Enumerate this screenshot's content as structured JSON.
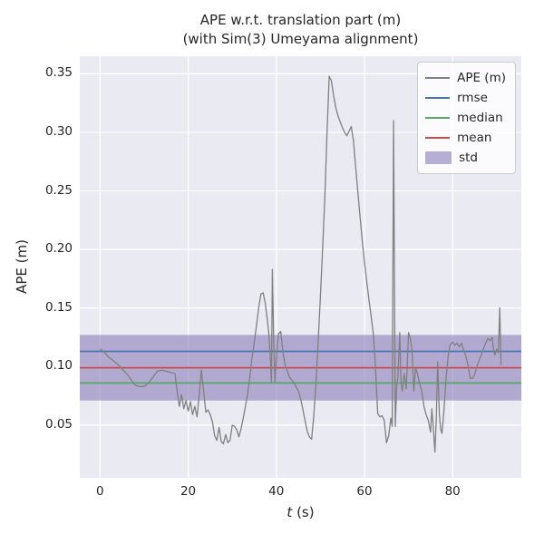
{
  "figure": {
    "title_line1": "APE w.r.t. translation part (m)",
    "title_line2": "(with Sim(3) Umeyama alignment)",
    "ylabel": "APE (m)",
    "xlabel_var": "t",
    "xlabel_unit": " (s)"
  },
  "chart_data": {
    "type": "line",
    "title": "APE w.r.t. translation part (m)\n(with Sim(3) Umeyama alignment)",
    "xlabel": "t (s)",
    "ylabel": "APE (m)",
    "xlim": [
      -4.6,
      95.6
    ],
    "ylim": [
      0.005,
      0.365
    ],
    "xticks": [
      0,
      20,
      40,
      60,
      80
    ],
    "yticks": [
      0.05,
      0.1,
      0.15,
      0.2,
      0.25,
      0.3,
      0.35
    ],
    "grid": true,
    "background_color": "#eaeaf2",
    "grid_color": "#ffffff",
    "legend_position": "upper right",
    "stats": {
      "rmse": {
        "value": 0.113,
        "color": "#4c72b0"
      },
      "median": {
        "value": 0.086,
        "color": "#55a868"
      },
      "mean": {
        "value": 0.099,
        "color": "#c44e52"
      },
      "std": {
        "band": [
          0.071,
          0.127
        ],
        "color": "#8172b2",
        "alpha": 0.55
      }
    },
    "legend": [
      {
        "label": "APE (m)",
        "type": "line",
        "color": "#808080"
      },
      {
        "label": "rmse",
        "type": "line",
        "color": "#4c72b0"
      },
      {
        "label": "median",
        "type": "line",
        "color": "#55a868"
      },
      {
        "label": "mean",
        "type": "line",
        "color": "#c44e52"
      },
      {
        "label": "std",
        "type": "patch",
        "color": "#8172b2"
      }
    ],
    "series": [
      {
        "name": "APE (m)",
        "color": "#808080",
        "points": [
          [
            0,
            0.115
          ],
          [
            1,
            0.112
          ],
          [
            2,
            0.108
          ],
          [
            3,
            0.105
          ],
          [
            4,
            0.102
          ],
          [
            5,
            0.098
          ],
          [
            6,
            0.094
          ],
          [
            7,
            0.089
          ],
          [
            8,
            0.084
          ],
          [
            9,
            0.083
          ],
          [
            10,
            0.083
          ],
          [
            11,
            0.086
          ],
          [
            12,
            0.091
          ],
          [
            13,
            0.096
          ],
          [
            14,
            0.097
          ],
          [
            15,
            0.096
          ],
          [
            16,
            0.095
          ],
          [
            17,
            0.094
          ],
          [
            17.5,
            0.078
          ],
          [
            18,
            0.066
          ],
          [
            18.5,
            0.076
          ],
          [
            19,
            0.064
          ],
          [
            19.5,
            0.071
          ],
          [
            20,
            0.062
          ],
          [
            20.5,
            0.07
          ],
          [
            21,
            0.059
          ],
          [
            21.5,
            0.066
          ],
          [
            22,
            0.057
          ],
          [
            22.5,
            0.076
          ],
          [
            23,
            0.097
          ],
          [
            23.5,
            0.079
          ],
          [
            24,
            0.061
          ],
          [
            24.5,
            0.063
          ],
          [
            25,
            0.059
          ],
          [
            25.5,
            0.053
          ],
          [
            26,
            0.041
          ],
          [
            26.5,
            0.037
          ],
          [
            27,
            0.048
          ],
          [
            27.5,
            0.036
          ],
          [
            28,
            0.034
          ],
          [
            28.5,
            0.042
          ],
          [
            29,
            0.035
          ],
          [
            29.5,
            0.037
          ],
          [
            30,
            0.05
          ],
          [
            30.5,
            0.049
          ],
          [
            31,
            0.046
          ],
          [
            31.5,
            0.04
          ],
          [
            32,
            0.047
          ],
          [
            32.5,
            0.056
          ],
          [
            33,
            0.066
          ],
          [
            33.5,
            0.077
          ],
          [
            34,
            0.091
          ],
          [
            34.5,
            0.108
          ],
          [
            35,
            0.121
          ],
          [
            35.5,
            0.135
          ],
          [
            36,
            0.15
          ],
          [
            36.5,
            0.162
          ],
          [
            37,
            0.163
          ],
          [
            37.5,
            0.154
          ],
          [
            38,
            0.139
          ],
          [
            38.3,
            0.128
          ],
          [
            38.6,
            0.11
          ],
          [
            38.9,
            0.086
          ],
          [
            39.1,
            0.183
          ],
          [
            39.4,
            0.12
          ],
          [
            39.7,
            0.087
          ],
          [
            40,
            0.108
          ],
          [
            40.5,
            0.128
          ],
          [
            41,
            0.13
          ],
          [
            41.5,
            0.112
          ],
          [
            42,
            0.101
          ],
          [
            42.5,
            0.096
          ],
          [
            43,
            0.091
          ],
          [
            44,
            0.086
          ],
          [
            45,
            0.079
          ],
          [
            45.5,
            0.073
          ],
          [
            46,
            0.064
          ],
          [
            46.5,
            0.054
          ],
          [
            47,
            0.045
          ],
          [
            47.5,
            0.04
          ],
          [
            48,
            0.038
          ],
          [
            48.5,
            0.058
          ],
          [
            49,
            0.086
          ],
          [
            49.5,
            0.121
          ],
          [
            50,
            0.16
          ],
          [
            50.5,
            0.2
          ],
          [
            51,
            0.243
          ],
          [
            51.5,
            0.3
          ],
          [
            52,
            0.348
          ],
          [
            52.5,
            0.344
          ],
          [
            53,
            0.331
          ],
          [
            53.5,
            0.321
          ],
          [
            54,
            0.314
          ],
          [
            54.5,
            0.309
          ],
          [
            55,
            0.304
          ],
          [
            55.5,
            0.3
          ],
          [
            56,
            0.297
          ],
          [
            56.5,
            0.301
          ],
          [
            57,
            0.305
          ],
          [
            57.5,
            0.293
          ],
          [
            58,
            0.27
          ],
          [
            58.5,
            0.249
          ],
          [
            59,
            0.228
          ],
          [
            59.5,
            0.208
          ],
          [
            60,
            0.189
          ],
          [
            60.5,
            0.173
          ],
          [
            61,
            0.158
          ],
          [
            61.5,
            0.143
          ],
          [
            62,
            0.128
          ],
          [
            62.5,
            0.1
          ],
          [
            63,
            0.06
          ],
          [
            63.5,
            0.057
          ],
          [
            64,
            0.058
          ],
          [
            64.5,
            0.054
          ],
          [
            65,
            0.035
          ],
          [
            65.5,
            0.041
          ],
          [
            66,
            0.056
          ],
          [
            66.3,
            0.049
          ],
          [
            66.6,
            0.31
          ],
          [
            67,
            0.049
          ],
          [
            67.3,
            0.084
          ],
          [
            67.6,
            0.091
          ],
          [
            68,
            0.129
          ],
          [
            68.3,
            0.086
          ],
          [
            68.6,
            0.079
          ],
          [
            69,
            0.094
          ],
          [
            69.5,
            0.081
          ],
          [
            70,
            0.129
          ],
          [
            70.4,
            0.124
          ],
          [
            70.8,
            0.113
          ],
          [
            71.2,
            0.079
          ],
          [
            71.6,
            0.099
          ],
          [
            72,
            0.094
          ],
          [
            72.5,
            0.086
          ],
          [
            73,
            0.079
          ],
          [
            73.5,
            0.066
          ],
          [
            74,
            0.059
          ],
          [
            74.5,
            0.054
          ],
          [
            75,
            0.044
          ],
          [
            75.3,
            0.064
          ],
          [
            75.6,
            0.049
          ],
          [
            76,
            0.027
          ],
          [
            76.3,
            0.056
          ],
          [
            76.6,
            0.104
          ],
          [
            77,
            0.059
          ],
          [
            77.3,
            0.046
          ],
          [
            77.6,
            0.043
          ],
          [
            78,
            0.061
          ],
          [
            78.5,
            0.089
          ],
          [
            79,
            0.109
          ],
          [
            79.5,
            0.119
          ],
          [
            80,
            0.121
          ],
          [
            80.5,
            0.118
          ],
          [
            81,
            0.12
          ],
          [
            81.5,
            0.117
          ],
          [
            82,
            0.12
          ],
          [
            82.5,
            0.114
          ],
          [
            83,
            0.109
          ],
          [
            83.5,
            0.101
          ],
          [
            84,
            0.09
          ],
          [
            84.5,
            0.09
          ],
          [
            85,
            0.093
          ],
          [
            85.5,
            0.1
          ],
          [
            86,
            0.105
          ],
          [
            86.5,
            0.11
          ],
          [
            87,
            0.115
          ],
          [
            87.5,
            0.12
          ],
          [
            88,
            0.124
          ],
          [
            88.5,
            0.122
          ],
          [
            89,
            0.125
          ],
          [
            89.3,
            0.114
          ],
          [
            89.6,
            0.11
          ],
          [
            90,
            0.115
          ],
          [
            90.4,
            0.112
          ],
          [
            90.7,
            0.15
          ],
          [
            91,
            0.101
          ]
        ]
      }
    ]
  }
}
